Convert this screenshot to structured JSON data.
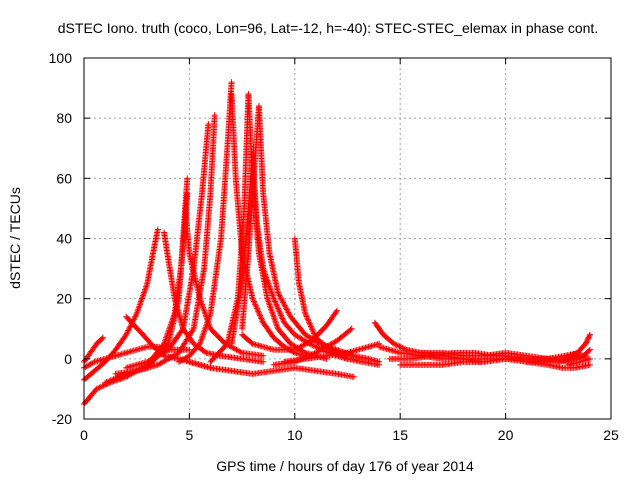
{
  "chart_data": {
    "type": "scatter",
    "title": "dSTEC Iono. truth (coco, Lon=96, Lat=-12, h=-40): STEC-STEC_elemax in phase cont.",
    "xlabel": "GPS time / hours of day 176 of year 2014",
    "ylabel": "dSTEC  / TECUs",
    "xlim": [
      0,
      25
    ],
    "ylim": [
      -20,
      100
    ],
    "x_ticks": [
      0,
      5,
      10,
      15,
      20,
      25
    ],
    "y_ticks": [
      -20,
      0,
      20,
      40,
      60,
      80,
      100
    ],
    "x_tick_labels": [
      "0",
      "5",
      "10",
      "15",
      "20",
      "25"
    ],
    "y_tick_labels": [
      "-20",
      "0",
      "20",
      "40",
      "60",
      "80",
      "100"
    ],
    "grid": true,
    "marker": "plus",
    "color": "#ff0000",
    "series": [
      {
        "x": [
          0.0,
          0.3,
          0.6,
          0.9
        ],
        "y": [
          -1,
          2,
          5,
          7
        ]
      },
      {
        "x": [
          0.0,
          0.5,
          1.0,
          1.5,
          2.0,
          2.5,
          3.0,
          3.3,
          3.5
        ],
        "y": [
          -7,
          -4,
          -1,
          3,
          8,
          15,
          25,
          36,
          43
        ]
      },
      {
        "x": [
          0.0,
          0.6,
          1.2,
          2.0,
          3.0,
          3.8,
          4.3,
          4.6,
          4.8,
          4.9
        ],
        "y": [
          -15,
          -10,
          -8,
          -6,
          -2,
          5,
          15,
          30,
          45,
          55
        ]
      },
      {
        "x": [
          0.0,
          0.5,
          1.0,
          1.5,
          2.0,
          2.5,
          3.0,
          3.5,
          4.0,
          4.5,
          5.0
        ],
        "y": [
          -3,
          -1,
          0,
          1,
          2,
          3,
          4,
          4,
          3,
          3,
          3
        ]
      },
      {
        "x": [
          1.5,
          2.5,
          3.5,
          4.5,
          5.2,
          5.7,
          6.0,
          6.2
        ],
        "y": [
          -5,
          -4,
          -2,
          2,
          10,
          30,
          55,
          81
        ]
      },
      {
        "x": [
          2.0,
          3.0,
          4.0,
          4.7,
          5.2,
          5.6,
          5.9
        ],
        "y": [
          -3,
          -1,
          3,
          10,
          30,
          55,
          78
        ]
      },
      {
        "x": [
          1.0,
          2.0,
          3.0,
          4.0,
          4.5,
          4.9
        ],
        "y": [
          -8,
          -5,
          -3,
          5,
          20,
          60
        ]
      },
      {
        "x": [
          2.0,
          2.8,
          3.3,
          3.8,
          4.5,
          5.0,
          5.5,
          6.0
        ],
        "y": [
          14,
          8,
          4,
          1,
          0,
          -1,
          -2,
          -3
        ]
      },
      {
        "x": [
          3.8,
          4.0,
          4.3,
          4.7,
          5.2,
          5.8,
          6.5,
          7.5,
          8.5
        ],
        "y": [
          42,
          33,
          20,
          10,
          5,
          2,
          1,
          0,
          -1
        ]
      },
      {
        "x": [
          4.8,
          5.0,
          5.5,
          6.0,
          6.7,
          7.5,
          8.5
        ],
        "y": [
          50,
          35,
          20,
          10,
          5,
          2,
          1
        ]
      },
      {
        "x": [
          4.5,
          5.0,
          5.5,
          6.0,
          6.5,
          6.8,
          7.0
        ],
        "y": [
          -1,
          1,
          5,
          15,
          40,
          70,
          92
        ]
      },
      {
        "x": [
          7.0,
          7.2,
          7.5,
          8.0,
          8.5,
          9.0,
          9.5,
          10.0,
          10.5
        ],
        "y": [
          88,
          60,
          35,
          20,
          12,
          7,
          4,
          2,
          1
        ]
      },
      {
        "x": [
          6.0,
          6.8,
          7.3,
          7.6,
          7.8
        ],
        "y": [
          -1,
          5,
          20,
          50,
          88
        ]
      },
      {
        "x": [
          7.8,
          8.0,
          8.3,
          8.7,
          9.2,
          9.8,
          10.5,
          11.5
        ],
        "y": [
          88,
          60,
          35,
          20,
          10,
          5,
          2,
          0
        ]
      },
      {
        "x": [
          7.0,
          7.5,
          7.8,
          8.0
        ],
        "y": [
          5,
          25,
          50,
          68
        ]
      },
      {
        "x": [
          8.0,
          8.2,
          8.5,
          9.0,
          9.5,
          10.0,
          10.7,
          11.3,
          12.0,
          12.5
        ],
        "y": [
          68,
          45,
          30,
          20,
          12,
          8,
          5,
          3,
          1,
          0
        ]
      },
      {
        "x": [
          7.5,
          7.8,
          8.1,
          8.3
        ],
        "y": [
          10,
          35,
          65,
          84
        ]
      },
      {
        "x": [
          8.3,
          8.5,
          8.8,
          9.2,
          9.8,
          10.5,
          11.2,
          12.0,
          12.8,
          13.5,
          14.0
        ],
        "y": [
          84,
          55,
          35,
          22,
          14,
          8,
          5,
          3,
          1,
          0,
          -1
        ]
      },
      {
        "x": [
          10.0,
          10.2,
          10.5,
          11.0,
          11.5,
          12.0,
          12.5,
          13.2,
          14.0
        ],
        "y": [
          40,
          25,
          15,
          7,
          4,
          2,
          0,
          -1,
          -2
        ]
      },
      {
        "x": [
          7.5,
          8.0,
          9.0,
          10.0,
          10.8,
          11.5,
          12.0
        ],
        "y": [
          8,
          5,
          3,
          3,
          6,
          11,
          16
        ]
      },
      {
        "x": [
          9.0,
          10.0,
          11.0,
          12.0,
          12.7
        ],
        "y": [
          -2,
          -1,
          2,
          6,
          10
        ]
      },
      {
        "x": [
          9.5,
          10.5,
          11.5,
          12.5,
          13.5,
          14.0
        ],
        "y": [
          -1,
          0,
          1,
          2,
          4,
          5
        ]
      },
      {
        "x": [
          5.0,
          6.0,
          7.0,
          8.0,
          9.0,
          10.0,
          11.0,
          12.0,
          12.8
        ],
        "y": [
          -1,
          -3,
          -4,
          -5,
          -4,
          -3,
          -4,
          -5,
          -6
        ]
      },
      {
        "x": [
          13.8,
          14.2,
          14.7,
          15.3,
          16.0,
          17.0,
          18.0,
          19.0,
          20.0,
          21.0,
          22.0
        ],
        "y": [
          12,
          8,
          5,
          3,
          2,
          1,
          0,
          0,
          0,
          0,
          0
        ]
      },
      {
        "x": [
          14.0,
          15.0,
          16.0,
          17.0,
          18.0,
          18.8
        ],
        "y": [
          4,
          2,
          1,
          0,
          0,
          -1
        ]
      },
      {
        "x": [
          14.5,
          15.5,
          16.5,
          17.5,
          18.5,
          19.5
        ],
        "y": [
          0,
          0,
          1,
          2,
          2,
          1
        ]
      },
      {
        "x": [
          15.0,
          16.0,
          17.0,
          18.0,
          19.0,
          20.0
        ],
        "y": [
          -2,
          -2,
          -2,
          -1,
          -1,
          0
        ]
      },
      {
        "x": [
          16.0,
          17.0,
          18.0,
          19.0,
          20.0,
          21.0,
          22.0,
          23.0
        ],
        "y": [
          2,
          2,
          1,
          1,
          2,
          1,
          0,
          -1
        ]
      },
      {
        "x": [
          19.0,
          20.0,
          21.0,
          22.0,
          22.8,
          23.5
        ],
        "y": [
          1,
          1,
          0,
          0,
          1,
          2
        ]
      },
      {
        "x": [
          20.0,
          21.0,
          22.0,
          23.0,
          23.8
        ],
        "y": [
          0,
          -1,
          -1,
          0,
          1
        ]
      },
      {
        "x": [
          21.0,
          22.0,
          22.7,
          23.3,
          24.0
        ],
        "y": [
          -1,
          -2,
          -3,
          -3,
          -2
        ]
      },
      {
        "x": [
          22.0,
          22.8,
          23.4,
          23.8,
          24.0
        ],
        "y": [
          0,
          0,
          2,
          5,
          8
        ]
      },
      {
        "x": [
          22.5,
          23.2,
          23.7,
          24.0
        ],
        "y": [
          -1,
          0,
          1,
          3
        ]
      },
      {
        "x": [
          23.0,
          23.5,
          24.0
        ],
        "y": [
          -2,
          -1,
          0
        ]
      }
    ]
  }
}
